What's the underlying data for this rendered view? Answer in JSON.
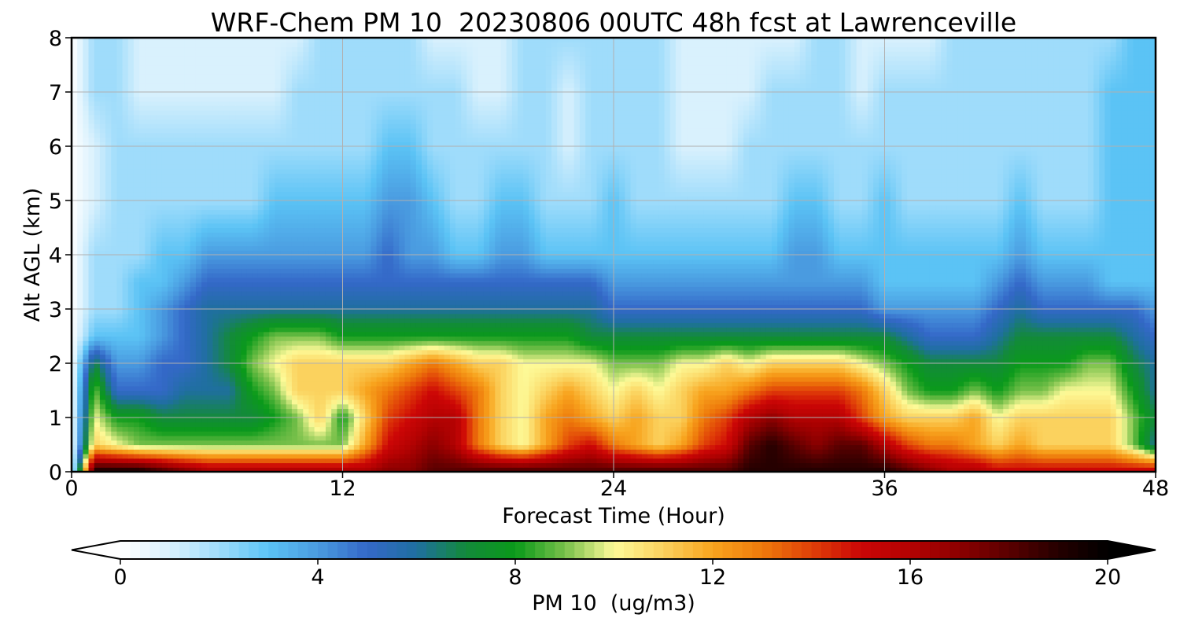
{
  "chart_data": {
    "type": "heatmap",
    "title": "WRF-Chem PM 10  20230806 00UTC 48h fcst at Lawrenceville",
    "xlabel": "Forecast Time (Hour)",
    "ylabel": "Alt AGL (km)",
    "xlim": [
      0,
      48
    ],
    "ylim": [
      0,
      8
    ],
    "x_ticks": [
      "0",
      "12",
      "24",
      "36",
      "48"
    ],
    "y_ticks": [
      "0",
      "1",
      "2",
      "3",
      "4",
      "5",
      "6",
      "7",
      "8"
    ],
    "grid": true,
    "colorbar": {
      "label": "PM 10  (ug/m3)",
      "range": [
        0,
        20
      ],
      "ticks": [
        "0",
        "4",
        "8",
        "12",
        "16",
        "20"
      ],
      "extend": "both",
      "stops": [
        {
          "value": 0,
          "color": "#ffffff"
        },
        {
          "value": 1,
          "color": "#d9f1fd"
        },
        {
          "value": 2,
          "color": "#9fdcfb"
        },
        {
          "value": 3,
          "color": "#5bc3f5"
        },
        {
          "value": 4,
          "color": "#4a9be0"
        },
        {
          "value": 5,
          "color": "#3468c8"
        },
        {
          "value": 6,
          "color": "#1f6fa0"
        },
        {
          "value": 7,
          "color": "#138a3a"
        },
        {
          "value": 8,
          "color": "#0a9a1a"
        },
        {
          "value": 9,
          "color": "#78c04a"
        },
        {
          "value": 10,
          "color": "#fdfa98"
        },
        {
          "value": 11,
          "color": "#fbd25e"
        },
        {
          "value": 12,
          "color": "#f8a41e"
        },
        {
          "value": 13,
          "color": "#ee7a0b"
        },
        {
          "value": 14,
          "color": "#e04008"
        },
        {
          "value": 15,
          "color": "#cc0606"
        },
        {
          "value": 16,
          "color": "#b40202"
        },
        {
          "value": 17,
          "color": "#8c0000"
        },
        {
          "value": 18,
          "color": "#5a0000"
        },
        {
          "value": 19,
          "color": "#250000"
        },
        {
          "value": 20,
          "color": "#000000"
        }
      ]
    },
    "times_h": [
      0,
      1,
      2,
      3,
      4,
      5,
      6,
      7,
      8,
      9,
      10,
      11,
      12,
      13,
      14,
      15,
      16,
      17,
      18,
      19,
      20,
      21,
      22,
      23,
      24,
      25,
      26,
      27,
      28,
      29,
      30,
      31,
      32,
      33,
      34,
      35,
      36,
      37,
      38,
      39,
      40,
      41,
      42,
      43,
      44,
      45,
      46,
      47,
      48
    ],
    "heights_km": [
      0.05,
      0.5,
      1.0,
      1.5,
      2.0,
      2.5,
      3.0,
      3.5,
      4.0,
      5.0,
      6.0,
      7.0,
      8.0
    ],
    "values": [
      [
        0,
        19,
        19,
        19,
        18,
        17,
        16,
        16,
        16,
        16,
        16,
        16,
        16,
        16,
        17,
        17,
        18,
        18,
        18,
        18,
        18,
        18,
        18,
        18,
        18,
        18,
        18,
        18,
        18,
        18,
        19,
        19,
        19,
        19,
        19,
        19,
        19,
        18,
        17,
        16,
        16,
        15,
        15,
        15,
        15,
        15,
        15,
        15,
        15
      ],
      [
        0,
        11,
        10,
        9,
        9,
        9,
        9,
        9,
        9,
        9,
        9,
        9,
        9,
        12,
        15,
        16,
        17,
        16,
        13,
        11,
        10,
        12,
        14,
        15,
        13,
        12,
        11,
        12,
        14,
        15,
        18,
        19,
        18,
        17,
        18,
        18,
        16,
        14,
        13,
        13,
        12,
        11,
        12,
        11,
        11,
        11,
        11,
        9,
        6
      ],
      [
        0,
        10,
        8,
        8,
        7,
        7,
        7,
        7,
        7,
        8,
        9,
        11,
        8,
        11,
        14,
        15,
        16,
        16,
        13,
        11,
        10,
        12,
        13,
        12,
        11,
        12,
        11,
        11,
        13,
        14,
        16,
        17,
        16,
        16,
        16,
        14,
        12,
        11,
        11,
        11,
        12,
        10,
        11,
        11,
        11,
        11,
        11,
        9,
        7
      ],
      [
        0,
        9,
        5,
        5,
        5,
        6,
        6,
        6,
        8,
        9,
        11,
        11,
        11,
        12,
        13,
        14,
        15,
        14,
        13,
        11,
        10,
        11,
        12,
        11,
        10,
        11,
        10,
        11,
        12,
        12,
        13,
        14,
        14,
        14,
        14,
        13,
        11,
        9,
        8,
        8,
        9,
        8,
        9,
        9,
        10,
        10,
        10,
        8,
        6
      ],
      [
        0,
        7,
        4,
        4,
        5,
        5,
        6,
        7,
        9,
        10,
        11,
        11,
        11,
        11,
        11,
        12,
        13,
        12,
        11,
        11,
        10,
        10,
        10,
        10,
        9,
        9,
        9,
        10,
        10,
        11,
        10,
        11,
        11,
        11,
        11,
        10,
        9,
        8,
        7,
        7,
        7,
        7,
        8,
        8,
        8,
        9,
        9,
        7,
        6
      ],
      [
        0,
        3,
        3,
        3,
        4,
        5,
        6,
        7,
        8,
        9,
        9,
        9,
        8,
        8,
        8,
        8,
        8,
        8,
        8,
        8,
        8,
        8,
        8,
        7,
        7,
        7,
        7,
        7,
        7,
        7,
        7,
        7,
        7,
        7,
        7,
        7,
        7,
        6,
        5,
        5,
        5,
        6,
        7,
        7,
        7,
        7,
        7,
        6,
        5
      ],
      [
        0,
        2,
        2,
        3,
        4,
        5,
        6,
        6,
        6,
        6,
        6,
        6,
        6,
        6,
        6,
        6,
        6,
        6,
        6,
        6,
        6,
        6,
        6,
        6,
        5,
        5,
        5,
        5,
        5,
        5,
        5,
        5,
        5,
        5,
        5,
        5,
        4,
        4,
        4,
        4,
        4,
        5,
        6,
        5,
        5,
        5,
        5,
        5,
        4
      ],
      [
        0,
        2,
        2,
        3,
        3,
        4,
        5,
        5,
        5,
        5,
        5,
        5,
        5,
        5,
        5,
        5,
        5,
        5,
        5,
        5,
        5,
        5,
        5,
        5,
        4,
        4,
        4,
        4,
        4,
        4,
        4,
        4,
        4,
        4,
        4,
        4,
        3,
        3,
        3,
        3,
        3,
        4,
        5,
        4,
        4,
        4,
        3,
        3,
        3
      ],
      [
        0,
        2,
        2,
        2,
        3,
        3,
        4,
        4,
        4,
        4,
        4,
        4,
        4,
        4,
        5,
        4,
        4,
        3,
        3,
        4,
        4,
        3,
        3,
        3,
        3,
        3,
        3,
        3,
        3,
        3,
        3,
        3,
        4,
        4,
        3,
        3,
        3,
        3,
        3,
        3,
        3,
        3,
        4,
        3,
        3,
        3,
        3,
        3,
        3
      ],
      [
        0,
        1,
        2,
        2,
        2,
        2,
        2,
        2,
        2,
        3,
        3,
        3,
        3,
        3,
        4,
        4,
        3,
        2,
        2,
        3,
        3,
        2,
        2,
        2,
        3,
        2,
        2,
        2,
        2,
        2,
        2,
        2,
        3,
        3,
        2,
        2,
        3,
        2,
        2,
        2,
        2,
        2,
        3,
        2,
        2,
        2,
        3,
        3,
        3
      ],
      [
        0,
        1,
        2,
        2,
        2,
        2,
        2,
        2,
        2,
        2,
        2,
        2,
        2,
        2,
        3,
        3,
        2,
        2,
        2,
        2,
        2,
        2,
        1,
        2,
        2,
        2,
        2,
        1,
        1,
        1,
        2,
        2,
        2,
        2,
        2,
        2,
        2,
        2,
        2,
        2,
        2,
        2,
        2,
        2,
        2,
        2,
        3,
        3,
        3
      ],
      [
        0,
        2,
        2,
        1,
        1,
        1,
        1,
        1,
        1,
        1,
        2,
        2,
        2,
        2,
        2,
        2,
        2,
        2,
        1,
        1,
        2,
        2,
        1,
        2,
        2,
        2,
        2,
        1,
        1,
        1,
        1,
        2,
        2,
        2,
        2,
        1,
        2,
        2,
        2,
        2,
        2,
        2,
        2,
        2,
        2,
        2,
        3,
        3,
        3
      ],
      [
        0,
        2,
        2,
        1,
        1,
        1,
        1,
        1,
        1,
        1,
        1,
        2,
        2,
        2,
        2,
        2,
        1,
        1,
        1,
        1,
        2,
        2,
        2,
        2,
        2,
        2,
        2,
        1,
        1,
        1,
        1,
        1,
        1,
        2,
        2,
        1,
        1,
        1,
        1,
        2,
        2,
        2,
        2,
        2,
        2,
        2,
        2,
        3,
        3
      ]
    ]
  }
}
